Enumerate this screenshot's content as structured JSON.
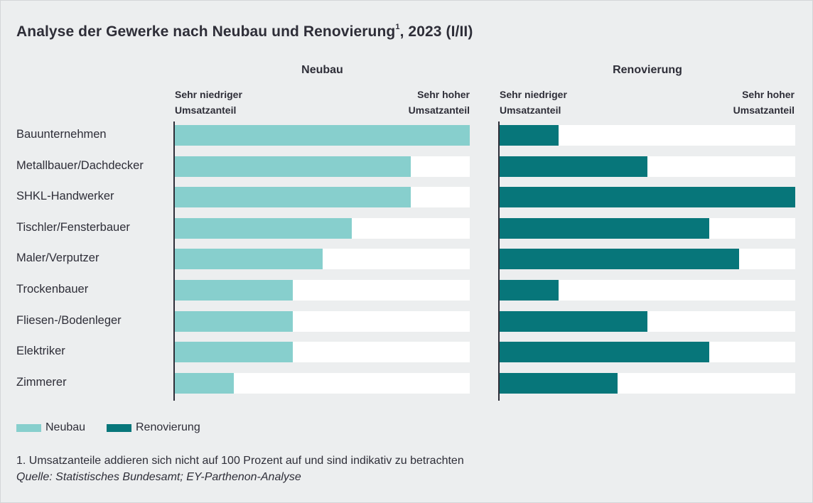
{
  "title": "Analyse der Gewerke nach Neubau und Renovierung",
  "title_sup": "1",
  "title_suffix": ", 2023 (I/II)",
  "colors": {
    "neubau": "#87cfcd",
    "renovierung": "#07767a",
    "track": "#ffffff",
    "background": "#eceeef"
  },
  "chart_data": {
    "type": "bar",
    "orientation": "horizontal",
    "categories": [
      "Bauunternehmen",
      "Metallbauer/Dachdecker",
      "SHKL-Handwerker",
      "Tischler/Fensterbauer",
      "Maler/Verputzer",
      "Trockenbauer",
      "Fliesen-/Bodenleger",
      "Elektriker",
      "Zimmerer"
    ],
    "series": [
      {
        "name": "Neubau",
        "values": [
          1.0,
          0.8,
          0.8,
          0.6,
          0.5,
          0.4,
          0.4,
          0.4,
          0.2
        ],
        "color": "#87cfcd"
      },
      {
        "name": "Renovierung",
        "values": [
          0.2,
          0.5,
          1.0,
          0.71,
          0.81,
          0.2,
          0.5,
          0.71,
          0.4
        ],
        "color": "#07767a"
      }
    ],
    "xlim": [
      0,
      1
    ],
    "panels": [
      {
        "title": "Neubau",
        "low_label": [
          "Sehr niedriger",
          "Umsatzanteil"
        ],
        "high_label": [
          "Sehr hoher",
          "Umsatzanteil"
        ]
      },
      {
        "title": "Renovierung",
        "low_label": [
          "Sehr niedriger",
          "Umsatzanteil"
        ],
        "high_label": [
          "Sehr hoher",
          "Umsatzanteil"
        ]
      }
    ],
    "legend": [
      "Neubau",
      "Renovierung"
    ],
    "legend_position": "bottom-left",
    "grid": false
  },
  "footnote": "1. Umsatzanteile addieren sich nicht auf 100 Prozent auf und sind indikativ zu betrachten",
  "source": "Quelle: Statistisches Bundesamt; EY-Parthenon-Analyse"
}
